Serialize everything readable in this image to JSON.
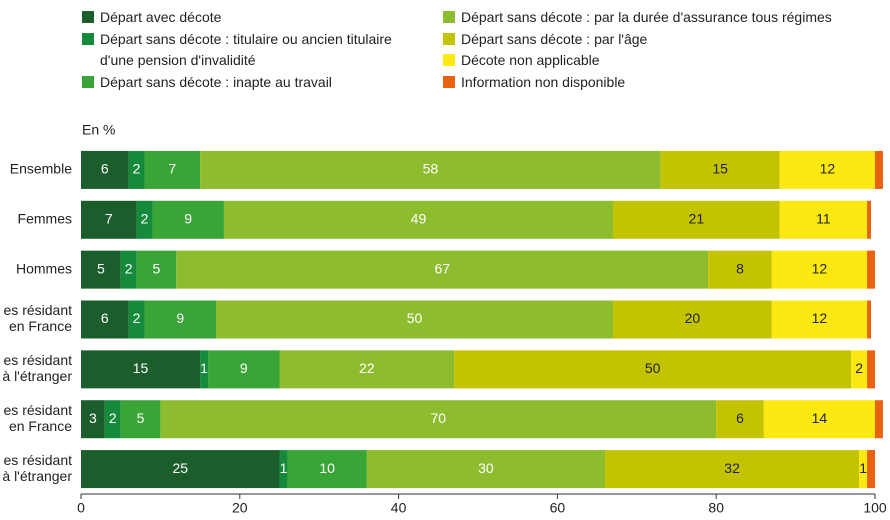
{
  "chart_data": {
    "type": "stacked_barh",
    "unit_label": "En %",
    "categories": [
      "Ensemble",
      "Femmes",
      "Hommes",
      [
        "es résidant",
        "en France"
      ],
      [
        "es résidant",
        "à l'étranger"
      ],
      [
        "es résidant",
        "en France"
      ],
      [
        "es résidant",
        "à l'étranger"
      ]
    ],
    "series": [
      {
        "name": "Départ avec décote",
        "color": "#1b5e2b",
        "label_color": "#ffffff",
        "values": [
          6,
          7,
          5,
          6,
          15,
          3,
          25
        ]
      },
      {
        "name": "Départ sans décote : titulaire ou ancien titulaire d'une pension d'invalidité",
        "color": "#168a3b",
        "label_color": "#ffffff",
        "values": [
          2,
          2,
          2,
          2,
          1,
          2,
          1
        ]
      },
      {
        "name": "Départ sans décote : inapte au travail",
        "color": "#3aa537",
        "label_color": "#ffffff",
        "values": [
          7,
          9,
          5,
          9,
          9,
          5,
          10
        ]
      },
      {
        "name": "Départ sans décote : par la durée d'assurance tous régimes",
        "color": "#8dbd2f",
        "label_color": "#ffffff",
        "values": [
          58,
          49,
          67,
          50,
          22,
          70,
          30
        ]
      },
      {
        "name": "Départ sans décote : par l'âge",
        "color": "#c4c300",
        "label_color": "#222222",
        "values": [
          15,
          21,
          8,
          20,
          50,
          6,
          32
        ]
      },
      {
        "name": "Décote non applicable",
        "color": "#fde912",
        "label_color": "#222222",
        "values": [
          12,
          11,
          12,
          12,
          2,
          14,
          1
        ]
      },
      {
        "name": "Information non disponible",
        "color": "#e8620f",
        "show_labels": false,
        "values": [
          1,
          0.5,
          1,
          0.5,
          1,
          1,
          1
        ]
      }
    ],
    "xlim": [
      0,
      100
    ],
    "xticks": [
      0,
      20,
      40,
      60,
      80,
      100
    ]
  }
}
